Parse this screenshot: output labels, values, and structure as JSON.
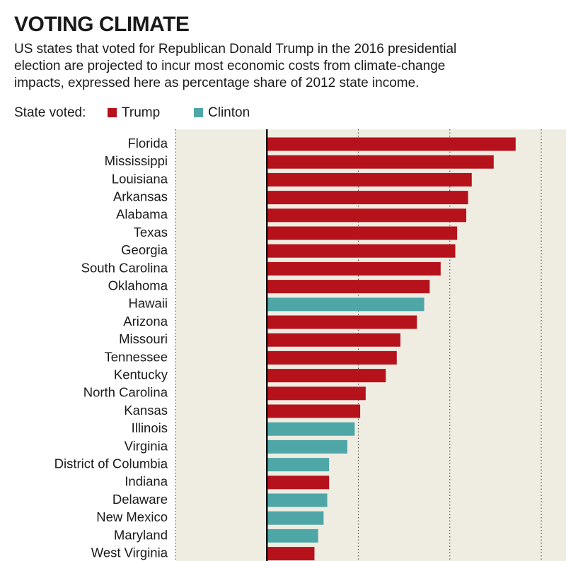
{
  "chart_data": {
    "type": "bar",
    "orientation": "horizontal",
    "title": "VOTING CLIMATE",
    "subtitle": [
      "US states that voted for Republican Donald Trump in the 2016 presidential",
      "election are projected to incur most economic costs from climate-change",
      "impacts, expressed here as percentage share of 2012 state income."
    ],
    "legend": {
      "label": "State voted:",
      "items": [
        {
          "name": "Trump",
          "color": "#b5121b"
        },
        {
          "name": "Clinton",
          "color": "#4fa6a6"
        }
      ]
    },
    "categories": [
      "Florida",
      "Mississippi",
      "Louisiana",
      "Arkansas",
      "Alabama",
      "Texas",
      "Georgia",
      "South Carolina",
      "Oklahoma",
      "Hawaii",
      "Arizona",
      "Missouri",
      "Tennessee",
      "Kentucky",
      "North Carolina",
      "Kansas",
      "Illinois",
      "Virginia",
      "District of Columbia",
      "Indiana",
      "Delaware",
      "New Mexico",
      "Maryland",
      "West Virginia"
    ],
    "values": [
      13.6,
      12.4,
      11.2,
      11.0,
      10.9,
      10.4,
      10.3,
      9.5,
      8.9,
      8.6,
      8.2,
      7.3,
      7.1,
      6.5,
      5.4,
      5.1,
      4.8,
      4.4,
      3.4,
      3.4,
      3.3,
      3.1,
      2.8,
      2.6
    ],
    "voted": [
      "Trump",
      "Trump",
      "Trump",
      "Trump",
      "Trump",
      "Trump",
      "Trump",
      "Trump",
      "Trump",
      "Clinton",
      "Trump",
      "Trump",
      "Trump",
      "Trump",
      "Trump",
      "Trump",
      "Clinton",
      "Clinton",
      "Clinton",
      "Trump",
      "Clinton",
      "Clinton",
      "Clinton",
      "Trump"
    ],
    "xlim": [
      -5,
      15.4
    ],
    "xticks": [
      -5,
      0,
      5,
      10,
      15
    ],
    "grid": true,
    "background": "#efede2"
  }
}
